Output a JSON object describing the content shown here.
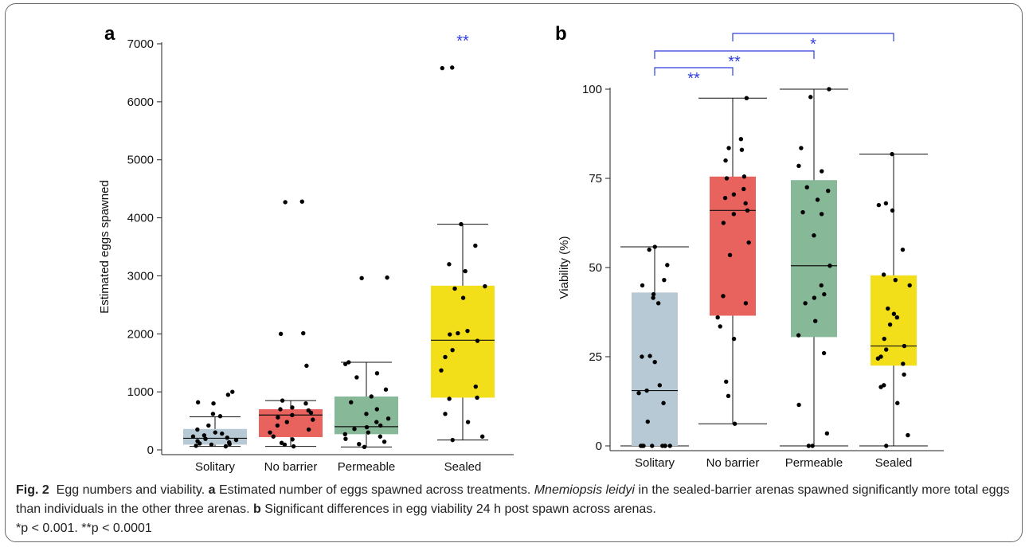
{
  "figure": {
    "caption": {
      "fig_label": "Fig. 2",
      "title": "Egg numbers and viability.",
      "a_label": "a",
      "a_text_1": "Estimated number of eggs spawned across treatments.",
      "species": "Mnemiopsis leidyi",
      "a_text_2": "in the sealed-barrier arenas spawned significantly more total eggs than individuals in the other three arenas.",
      "b_label": "b",
      "b_text": "Significant differences in egg viability 24 h post spawn across arenas.",
      "footnote": "*p < 0.001. **p < 0.0001"
    },
    "colors": {
      "Solitary": "#b8c9d6",
      "No barrier": "#e8625e",
      "Permeable": "#87b897",
      "Sealed": "#f2df1a",
      "significance": "#2f3fd9"
    }
  },
  "chart_data": [
    {
      "panel": "a",
      "type": "box",
      "title": "",
      "xlabel": "",
      "ylabel": "Estimated eggs spawned",
      "ylim": [
        0,
        7000
      ],
      "yticks": [
        0,
        1000,
        2000,
        3000,
        4000,
        5000,
        6000,
        7000
      ],
      "grid": false,
      "categories": [
        "Solitary",
        "No barrier",
        "Permeable",
        "Sealed"
      ],
      "boxes": [
        {
          "name": "Solitary",
          "min": 60,
          "q1": 90,
          "median": 200,
          "q3": 360,
          "max": 570
        },
        {
          "name": "No barrier",
          "min": 60,
          "q1": 220,
          "median": 600,
          "q3": 700,
          "max": 850
        },
        {
          "name": "Permeable",
          "min": 50,
          "q1": 270,
          "median": 400,
          "q3": 920,
          "max": 1510
        },
        {
          "name": "Sealed",
          "min": 170,
          "q1": 900,
          "median": 1890,
          "q3": 2830,
          "max": 3890
        }
      ],
      "points": [
        [
          60,
          70,
          90,
          100,
          110,
          130,
          150,
          170,
          190,
          210,
          230,
          250,
          280,
          300,
          350,
          420,
          580,
          620,
          800,
          820,
          950,
          1000
        ],
        [
          60,
          90,
          120,
          180,
          230,
          300,
          350,
          420,
          480,
          520,
          560,
          600,
          640,
          680,
          700,
          730,
          800,
          850,
          1450,
          2000,
          2010,
          4270,
          4280
        ],
        [
          50,
          100,
          140,
          190,
          230,
          270,
          300,
          360,
          390,
          420,
          480,
          540,
          620,
          700,
          820,
          920,
          1040,
          1250,
          1320,
          1480,
          1510,
          2960,
          2970
        ],
        [
          170,
          230,
          480,
          620,
          880,
          900,
          1090,
          1370,
          1600,
          1720,
          1880,
          1990,
          2010,
          2050,
          2620,
          2780,
          2820,
          3080,
          3200,
          3520,
          3890,
          6580,
          6590
        ]
      ],
      "significance": [
        {
          "label": "**",
          "group": "Sealed"
        }
      ]
    },
    {
      "panel": "b",
      "type": "box",
      "title": "",
      "xlabel": "",
      "ylabel": "Viability (%)",
      "ylim": [
        0,
        100
      ],
      "yticks": [
        0,
        25,
        50,
        75,
        100
      ],
      "grid": false,
      "categories": [
        "Solitary",
        "No barrier",
        "Permeable",
        "Sealed"
      ],
      "boxes": [
        {
          "name": "Solitary",
          "min": 0,
          "q1": 0,
          "median": 15.5,
          "q3": 43,
          "max": 55.8
        },
        {
          "name": "No barrier",
          "min": 6.2,
          "q1": 36.5,
          "median": 66,
          "q3": 75.5,
          "max": 97.5
        },
        {
          "name": "Permeable",
          "min": 0,
          "q1": 30.5,
          "median": 50.5,
          "q3": 74.5,
          "max": 100
        },
        {
          "name": "Sealed",
          "min": 0,
          "q1": 22.5,
          "median": 28,
          "q3": 47.8,
          "max": 81.8
        }
      ],
      "points": [
        [
          0,
          0,
          0,
          0,
          0,
          0,
          0,
          0,
          6.8,
          12,
          14.8,
          15.5,
          17,
          23.5,
          25,
          25.2,
          40,
          41.5,
          42.5,
          45,
          46.5,
          50.7,
          55,
          55.8
        ],
        [
          6.2,
          14,
          18,
          30,
          33.5,
          36,
          40,
          42,
          53.5,
          57,
          62.5,
          65,
          66,
          68,
          69.5,
          70.5,
          72,
          75,
          75.5,
          80,
          83,
          83.5,
          86,
          97.5
        ],
        [
          0,
          0,
          3.5,
          11.5,
          26,
          31,
          35,
          40,
          41.5,
          42.5,
          45,
          50.5,
          59,
          65,
          65.5,
          69,
          71.5,
          72.5,
          77,
          78.5,
          83.5,
          97.8,
          100
        ],
        [
          0,
          3,
          12,
          16.5,
          17,
          20,
          23,
          24.5,
          25,
          27,
          28,
          30,
          34,
          36,
          37,
          38.5,
          45,
          46.5,
          48,
          55,
          66,
          67.5,
          68,
          81.8
        ]
      ],
      "significance": [
        {
          "label": "**",
          "groups": [
            "Solitary",
            "No barrier"
          ]
        },
        {
          "label": "**",
          "groups": [
            "Solitary",
            "Permeable"
          ]
        },
        {
          "label": "*",
          "groups": [
            "No barrier",
            "Sealed"
          ]
        }
      ]
    }
  ]
}
